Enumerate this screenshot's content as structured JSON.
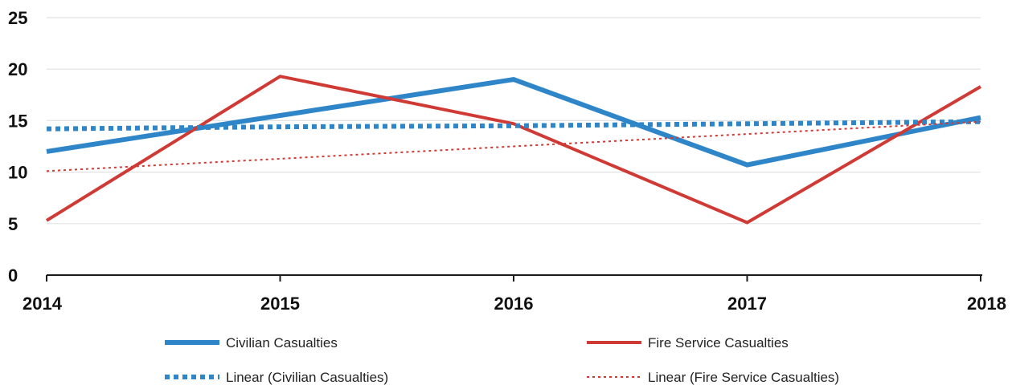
{
  "chart_data": {
    "type": "line",
    "x": [
      "2014",
      "2015",
      "2016",
      "2017",
      "2018"
    ],
    "ylim": [
      0,
      25
    ],
    "y_ticks": [
      "0",
      "5",
      "10",
      "15",
      "20",
      "25"
    ],
    "grid": true,
    "legend_position": "bottom",
    "series": [
      {
        "name": "Civilian Casualties",
        "values": [
          12,
          15.5,
          19,
          10.7,
          15.3
        ],
        "color": "#2e86c9",
        "style": "solid-thick"
      },
      {
        "name": "Fire Service Casualties",
        "values": [
          5.3,
          19.3,
          14.7,
          5.1,
          18.3
        ],
        "color": "#d03a35",
        "style": "solid"
      },
      {
        "name": "Linear (Civilian Casualties)",
        "values": [
          14.2,
          14.4,
          14.5,
          14.7,
          14.9
        ],
        "color": "#2e86c9",
        "style": "dotted-thick"
      },
      {
        "name": "Linear (Fire Service Casualties)",
        "values": [
          10.1,
          11.3,
          12.5,
          13.7,
          14.9
        ],
        "color": "#d03a35",
        "style": "dotted-thin"
      }
    ]
  }
}
